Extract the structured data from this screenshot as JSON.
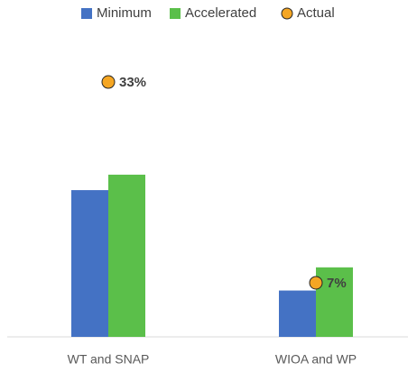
{
  "chart_data": {
    "type": "bar",
    "categories": [
      "WT and SNAP",
      "WIOA and WP"
    ],
    "series": [
      {
        "name": "Minimum",
        "color": "#4472c4",
        "values": [
          19,
          6
        ]
      },
      {
        "name": "Accelerated",
        "color": "#5bbf4a",
        "values": [
          21,
          9
        ]
      },
      {
        "name": "Actual",
        "type": "scatter",
        "color": "#f5a623",
        "values": [
          33,
          7
        ],
        "value_labels": [
          "33%",
          "7%"
        ]
      }
    ],
    "ylim": [
      0,
      40
    ],
    "legend": "top"
  }
}
